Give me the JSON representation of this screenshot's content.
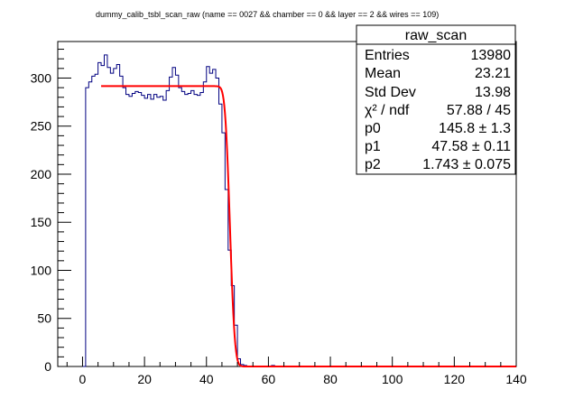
{
  "chart_data": {
    "type": "histogram",
    "title": "dummy_calib_tsbl_scan_raw  (name == 0027 && chamber == 0 && layer == 2 && wires == 109)",
    "xlim": [
      -8,
      140
    ],
    "ylim": [
      0,
      338
    ],
    "x_ticks": [
      0,
      20,
      40,
      60,
      80,
      100,
      120,
      140
    ],
    "y_ticks": [
      0,
      50,
      100,
      150,
      200,
      250,
      300
    ],
    "bin_width": 1,
    "bins_start": 0,
    "counts": [
      0,
      290,
      296,
      302,
      304,
      316,
      313,
      324,
      311,
      305,
      310,
      314,
      302,
      290,
      283,
      281,
      284,
      286,
      285,
      282,
      279,
      283,
      278,
      283,
      280,
      281,
      277,
      287,
      301,
      311,
      303,
      290,
      286,
      283,
      284,
      287,
      283,
      282,
      285,
      296,
      312,
      305,
      309,
      300,
      273,
      243,
      184,
      121,
      84,
      43,
      8,
      2,
      1,
      0,
      0,
      0,
      0,
      0,
      0,
      0,
      0,
      1,
      0,
      0,
      0,
      0,
      0,
      0,
      0,
      0,
      0,
      0,
      0,
      0,
      0,
      0,
      0,
      0,
      0,
      0,
      0,
      0,
      0,
      0,
      0,
      0,
      0,
      0,
      0,
      0,
      0,
      0,
      0,
      0,
      0,
      0,
      0,
      0,
      0,
      0,
      0,
      0,
      0,
      0,
      0,
      0,
      0,
      0,
      0,
      0,
      0,
      0,
      0,
      0,
      0,
      0,
      0,
      0,
      0,
      0,
      0,
      0,
      0,
      0,
      0,
      0,
      0,
      0,
      0,
      0,
      0,
      0,
      0,
      0,
      0,
      0,
      0,
      0,
      0,
      0
    ],
    "fit": {
      "function": "erfc",
      "x_range": [
        6,
        140
      ],
      "p0": 145.8,
      "p1": 47.58,
      "p2": 1.743
    },
    "colors": {
      "histogram": "#000080",
      "fit": "#ff0000"
    }
  },
  "stats_box": {
    "name": "raw_scan",
    "rows": [
      {
        "label": "Entries",
        "value": "13980"
      },
      {
        "label": "Mean",
        "value": "23.21"
      },
      {
        "label": "Std Dev",
        "value": "13.98"
      },
      {
        "label": "χ² / ndf",
        "value": "57.88 / 45"
      },
      {
        "label": "p0",
        "value": "145.8 ± 1.3"
      },
      {
        "label": "p1",
        "value": "47.58 ± 0.11"
      },
      {
        "label": "p2",
        "value": "1.743 ± 0.075"
      }
    ]
  }
}
